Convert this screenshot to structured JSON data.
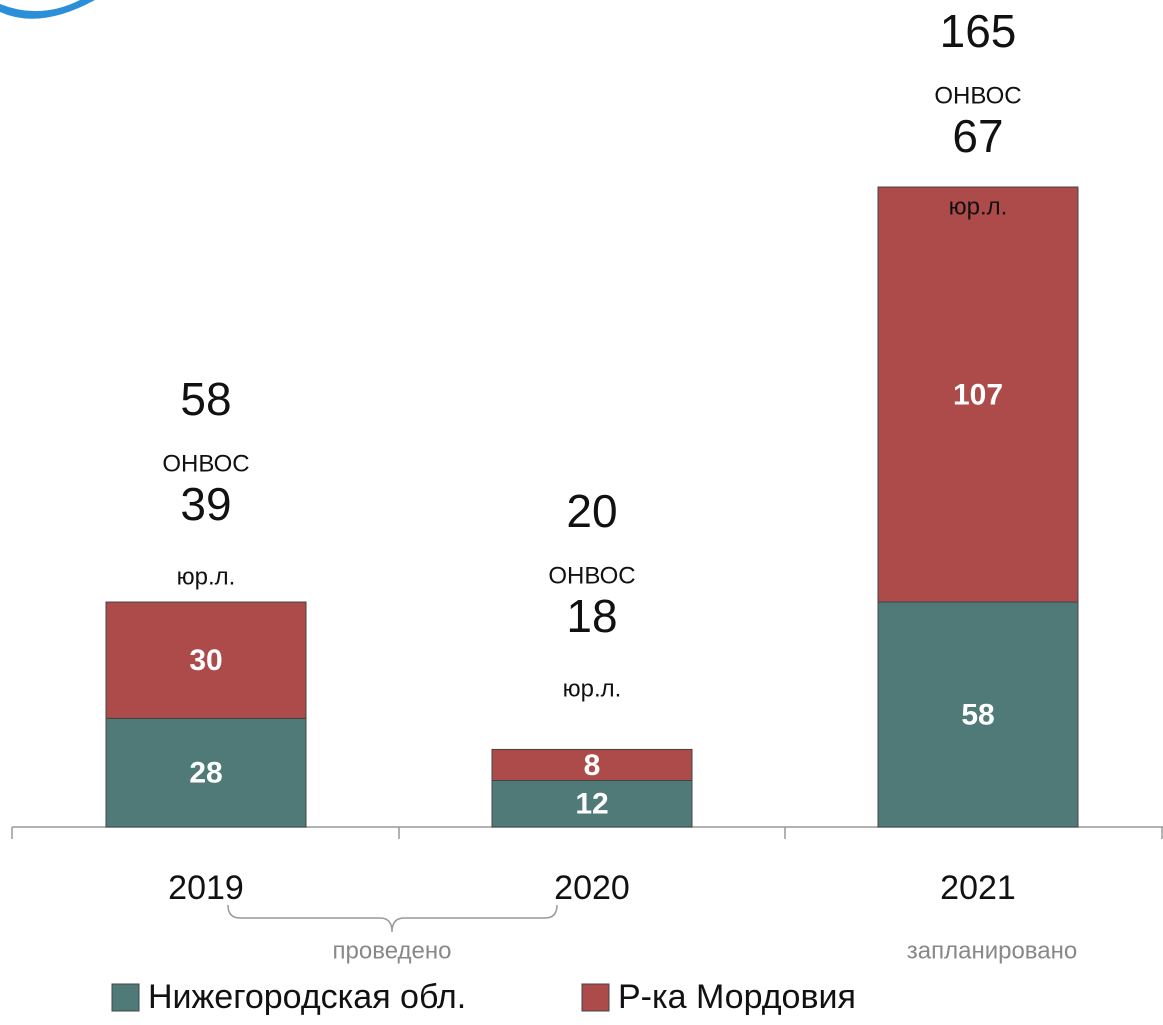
{
  "chart_data": {
    "type": "bar",
    "stacked": true,
    "categories": [
      "2019",
      "2020",
      "2021"
    ],
    "series": [
      {
        "name": "Нижегородская обл.",
        "color": "#507a78",
        "values": [
          28,
          12,
          58
        ]
      },
      {
        "name": "Р-ка Мордовия",
        "color": "#ad4a4a",
        "values": [
          30,
          8,
          107
        ]
      }
    ],
    "ylim": [
      0,
      165
    ],
    "annotations": [
      {
        "value": 58,
        "label": "ОНВОС",
        "value2": 39,
        "label2": "юр.л."
      },
      {
        "value": 20,
        "label": "ОНВОС",
        "value2": 18,
        "label2": "юр.л."
      },
      {
        "value": 165,
        "label": "ОНВОС",
        "value2": 67,
        "label2": "юр.л."
      }
    ],
    "group_labels": [
      "проведено",
      "запланировано"
    ]
  }
}
